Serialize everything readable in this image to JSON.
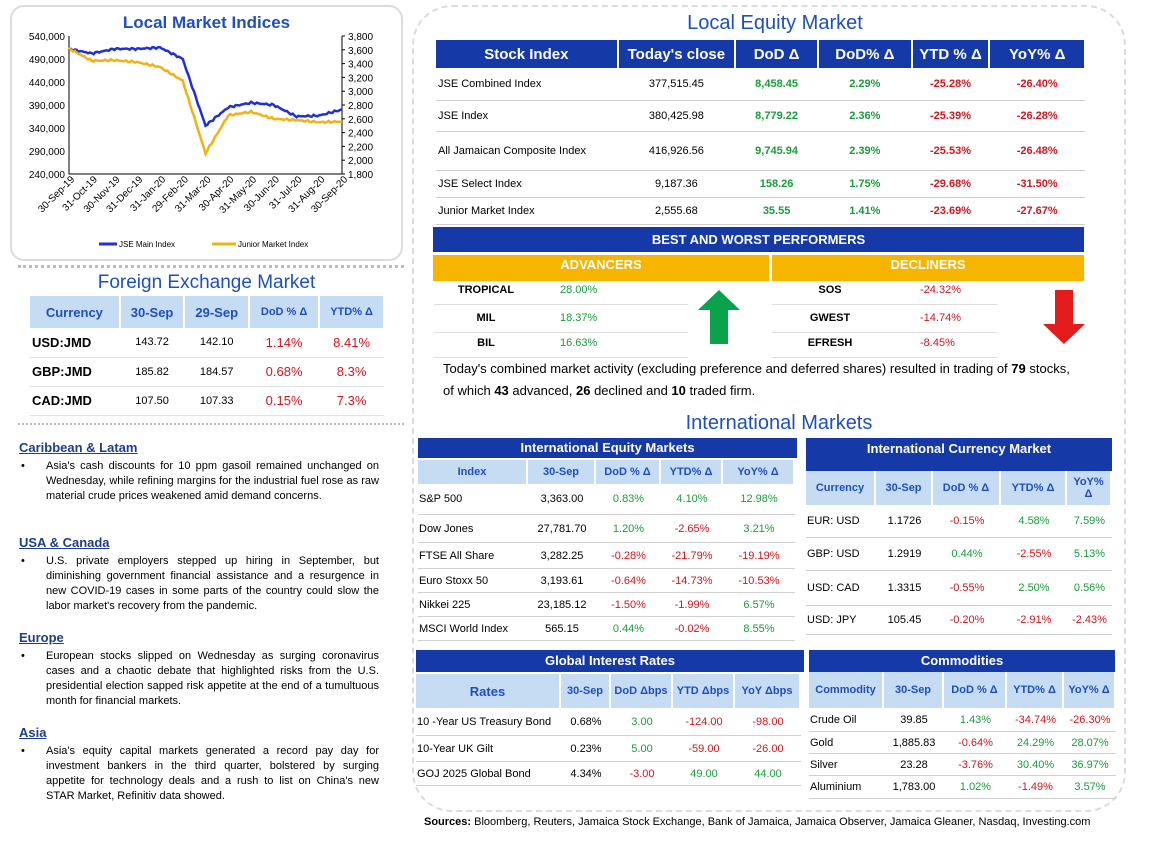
{
  "chart": {
    "title": "Local Market Indices",
    "left_ticks": [
      "540,000",
      "490,000",
      "440,000",
      "390,000",
      "340,000",
      "290,000",
      "240,000"
    ],
    "right_ticks": [
      "3,800",
      "3,600",
      "3,400",
      "3,200",
      "3,000",
      "2,800",
      "2,600",
      "2,400",
      "2,200",
      "2,000",
      "1,800"
    ],
    "x_ticks": [
      "30-Sep-19",
      "31-Oct-19",
      "30-Nov-19",
      "31-Dec-19",
      "31-Jan-20",
      "29-Feb-20",
      "31-Mar-20",
      "30-Apr-20",
      "31-May-20",
      "30-Jun-20",
      "31-Jul-20",
      "31-Aug-20",
      "30-Sep-20"
    ],
    "legend": [
      "JSE Main Index",
      "Junior Market Index"
    ]
  },
  "chart_data": {
    "type": "line",
    "title": "Local Market Indices",
    "x": [
      "30-Sep-19",
      "31-Oct-19",
      "30-Nov-19",
      "31-Dec-19",
      "31-Jan-20",
      "29-Feb-20",
      "31-Mar-20",
      "30-Apr-20",
      "31-May-20",
      "30-Jun-20",
      "31-Jul-20",
      "31-Aug-20",
      "30-Sep-20"
    ],
    "ylim_left": [
      240000,
      540000
    ],
    "ylim_right": [
      1800,
      3800
    ],
    "series": [
      {
        "name": "JSE Main Index",
        "axis": "left",
        "color": "#1f2fdc",
        "values": [
          512000,
          502000,
          512000,
          512000,
          515000,
          490000,
          345000,
          385000,
          395000,
          390000,
          365000,
          367000,
          380000
        ]
      },
      {
        "name": "Junior Market Index",
        "axis": "right",
        "color": "#f2b114",
        "values": [
          3620,
          3440,
          3450,
          3420,
          3350,
          3150,
          2100,
          2650,
          2700,
          2600,
          2580,
          2550,
          2560
        ]
      }
    ]
  },
  "fx": {
    "title": "Foreign Exchange Market",
    "headers": [
      "Currency",
      "30-Sep",
      "29-Sep",
      "DoD % Δ",
      "YTD% Δ"
    ],
    "rows": [
      [
        "USD:JMD",
        "143.72",
        "142.10",
        "1.14%",
        "8.41%"
      ],
      [
        "GBP:JMD",
        "185.82",
        "184.57",
        "0.68%",
        "8.3%"
      ],
      [
        "CAD:JMD",
        "107.50",
        "107.33",
        "0.15%",
        "7.3%"
      ]
    ]
  },
  "news": [
    {
      "title": "Caribbean & Latam",
      "text": "Asia's cash discounts for 10 ppm gasoil remained unchanged on Wednesday, while refining margins for the industrial fuel rose as raw material crude prices weakened amid demand concerns."
    },
    {
      "title": "USA & Canada",
      "text": "U.S. private employers stepped up hiring in September, but diminishing government financial assistance and a resurgence in new COVID-19 cases in some parts of the country could slow the labor market's recovery from the pandemic."
    },
    {
      "title": "Europe",
      "text": "European stocks slipped on Wednesday as surging coronavirus cases and a chaotic debate that highlighted risks from the U.S. presidential election sapped risk appetite at the end of a tumultuous month for financial markets."
    },
    {
      "title": "Asia",
      "text": "Asia's equity capital markets generated a record pay day for investment bankers in the third quarter, bolstered by surging appetite for technology deals and a rush to list on China's new STAR Market, Refinitiv data showed."
    }
  ],
  "equity": {
    "title": "Local Equity Market",
    "headers": [
      "Stock Index",
      "Today's close",
      "DoD  Δ",
      "DoD% Δ",
      "YTD % Δ",
      "YoY% Δ"
    ],
    "rows": [
      [
        "JSE Combined Index",
        "377,515.45",
        "8,458.45",
        "2.29%",
        "-25.28%",
        "-26.40%"
      ],
      [
        "JSE Index",
        "380,425.98",
        "8,779.22",
        "2.36%",
        "-25.39%",
        "-26.28%"
      ],
      [
        "All Jamaican Composite Index",
        "416,926.56",
        "9,745.94",
        "2.39%",
        "-25.53%",
        "-26.48%"
      ],
      [
        "JSE Select Index",
        "9,187.36",
        "158.26",
        "1.75%",
        "-29.68%",
        "-31.50%"
      ],
      [
        "Junior Market Index",
        "2,555.68",
        "35.55",
        "1.41%",
        "-23.69%",
        "-27.67%"
      ]
    ]
  },
  "performers": {
    "title": "BEST AND WORST PERFORMERS",
    "adv_label": "ADVANCERS",
    "dec_label": "DECLINERS",
    "advancers": [
      [
        "TROPICAL",
        "28.00%"
      ],
      [
        "MIL",
        "18.37%"
      ],
      [
        "BIL",
        "16.63%"
      ]
    ],
    "decliners": [
      [
        "SOS",
        "-24.32%"
      ],
      [
        "GWEST",
        "-14.74%"
      ],
      [
        "EFRESH",
        "-8.45%"
      ]
    ]
  },
  "activity": {
    "pre": "Today's combined market activity (excluding preference and deferred shares) resulted in trading of ",
    "n1": "79",
    "mid1": " stocks, of which ",
    "n2": "43",
    "mid2": " advanced, ",
    "n3": "26",
    "mid3": " declined and ",
    "n4": "10",
    "post": " traded firm."
  },
  "intl": {
    "title": "International Markets",
    "equity_title": "International Equity Markets",
    "equity_headers": [
      "Index",
      "30-Sep",
      "DoD % Δ",
      "YTD% Δ",
      "YoY% Δ"
    ],
    "equity_rows": [
      [
        "S&P 500",
        "3,363.00",
        "0.83%",
        "4.10%",
        "12.98%"
      ],
      [
        "Dow Jones",
        "27,781.70",
        "1.20%",
        "-2.65%",
        "3.21%"
      ],
      [
        "FTSE All Share",
        "3,282.25",
        "-0.28%",
        "-21.79%",
        "-19.19%"
      ],
      [
        "Euro Stoxx 50",
        "3,193.61",
        "-0.64%",
        "-14.73%",
        "-10.53%"
      ],
      [
        "Nikkei 225",
        "23,185.12",
        "-1.50%",
        "-1.99%",
        "6.57%"
      ],
      [
        "MSCI World Index",
        "565.15",
        "0.44%",
        "-0.02%",
        "8.55%"
      ]
    ],
    "currency_title": "International Currency Market",
    "currency_headers": [
      "Currency",
      "30-Sep",
      "DoD % Δ",
      "YTD% Δ",
      "YoY% Δ"
    ],
    "currency_rows": [
      [
        "EUR: USD",
        "1.1726",
        "-0.15%",
        "4.58%",
        "7.59%"
      ],
      [
        "GBP: USD",
        "1.2919",
        "0.44%",
        "-2.55%",
        "5.13%"
      ],
      [
        "USD: CAD",
        "1.3315",
        "-0.55%",
        "2.50%",
        "0.56%"
      ],
      [
        "USD: JPY",
        "105.45",
        "-0.20%",
        "-2.91%",
        "-2.43%"
      ]
    ],
    "rates_title": "Global Interest Rates",
    "rates_headers": [
      "Rates",
      "30-Sep",
      "DoD Δbps",
      "YTD Δbps",
      "YoY Δbps"
    ],
    "rates_rows": [
      [
        "10 -Year US Treasury Bond",
        "0.68%",
        "3.00",
        "-124.00",
        "-98.00"
      ],
      [
        "10-Year UK Gilt",
        "0.23%",
        "5.00",
        "-59.00",
        "-26.00"
      ],
      [
        "GOJ 2025 Global Bond",
        "4.34%",
        "-3.00",
        "49.00",
        "44.00"
      ]
    ],
    "comm_title": "Commodities",
    "comm_headers": [
      "Commodity",
      "30-Sep",
      "DoD % Δ",
      "YTD% Δ",
      "YoY% Δ"
    ],
    "comm_rows": [
      [
        "Crude Oil",
        "39.85",
        "1.43%",
        "-34.74%",
        "-26.30%"
      ],
      [
        "Gold",
        "1,885.83",
        "-0.64%",
        "24.29%",
        "28.07%"
      ],
      [
        "Silver",
        "23.28",
        "-3.76%",
        "30.40%",
        "36.97%"
      ],
      [
        "Aluminium",
        "1,783.00",
        "1.02%",
        "-1.49%",
        "3.57%"
      ]
    ]
  },
  "sources": {
    "label": "Sources:",
    "text": " Bloomberg, Reuters, Jamaica Stock Exchange, Bank of Jamaica, Jamaica Observer, Jamaica Gleaner, Nasdaq, Investing.com"
  }
}
